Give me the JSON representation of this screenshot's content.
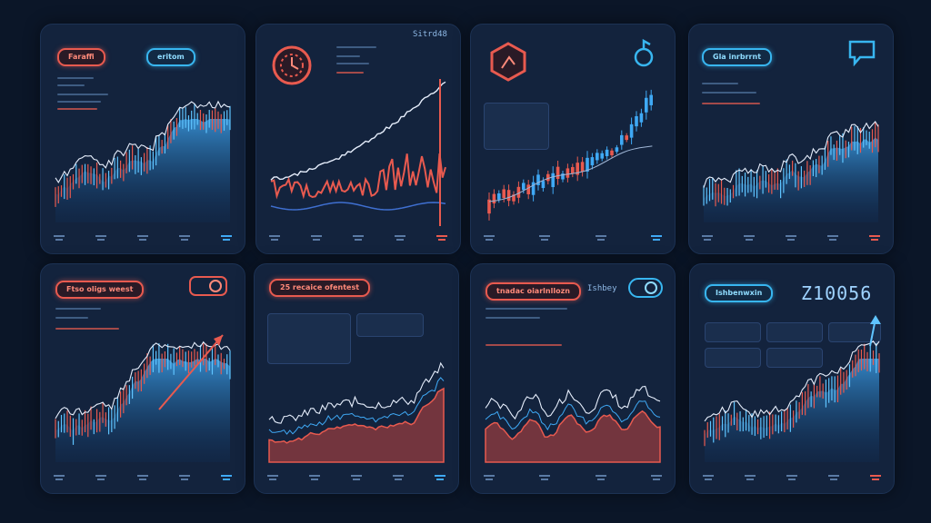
{
  "cards": [
    {
      "id": "c1",
      "pill": "ɑɑɑɑɑɑɑ  ɑɑɑɑɑɑ",
      "pill2": "ɑɑɑɑɑ",
      "theme": "area"
    },
    {
      "id": "c2",
      "ticker": "ɑɑɑɑɑɑ",
      "theme": "line"
    },
    {
      "id": "c3",
      "theme": "candle"
    },
    {
      "id": "c4",
      "pill": "ɑɑɑɑɑɑɑɑɑɑɑɑɑɑɑ",
      "theme": "area"
    },
    {
      "id": "c5",
      "pill": "ɑɑɑɑɑɑɑɑɑɑɑɑɑ",
      "theme": "area2"
    },
    {
      "id": "c6",
      "pill": "ɑɑɑɑɑɑɑɑɑɑɑɑ",
      "theme": "wave"
    },
    {
      "id": "c7",
      "pill": "ɑɑɑɑɑɑɑɑɑɑɑɑɑ",
      "theme": "redline"
    },
    {
      "id": "c8",
      "pill": "ɑɑɑɑɑɑɑɑɑɑ",
      "bigval": "210056",
      "theme": "bluebars"
    }
  ],
  "texts": {
    "c1_pill_a": "Faraffi",
    "c1_pill_b": "eritom",
    "c2_ticker": "Sitrd48",
    "c4_pill": "Ftso oligs weest",
    "c5_pill": "25 recaice ofentest",
    "c6_pill": "Gla inrbrrnt",
    "c6_tag": "Ishbey",
    "c7_pill": "tnadac oiarlnllozn",
    "c8_pill": "Ishbenwxin",
    "c8_big": "Z10056"
  },
  "colors": {
    "bg": "#0b1628",
    "card": "#13233d",
    "accentRed": "#e85a4f",
    "accentBlue": "#38b6f0"
  },
  "chart_data": []
}
